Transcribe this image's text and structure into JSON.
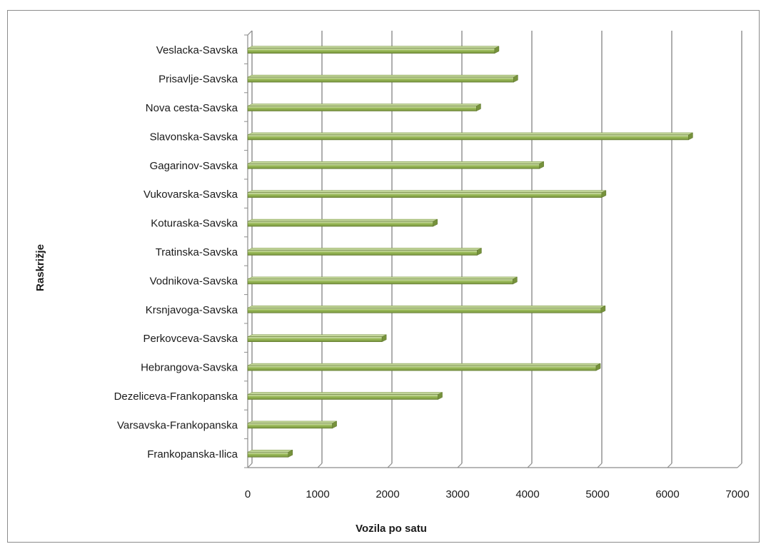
{
  "chart_data": {
    "type": "bar",
    "orientation": "horizontal",
    "title": "",
    "xlabel": "Vozila po satu",
    "ylabel": "Raskrižje",
    "xlim": [
      0,
      7000
    ],
    "xticks": [
      0,
      1000,
      2000,
      3000,
      4000,
      5000,
      6000,
      7000
    ],
    "grid": true,
    "legend": "none",
    "bar_color": "#9bbb59",
    "categories": [
      "Veslacka-Savska",
      "Prisavlje-Savska",
      "Nova cesta-Savska",
      "Slavonska-Savska",
      "Gagarinov-Savska",
      "Vukovarska-Savska",
      "Koturaska-Savska",
      "Tratinska-Savska",
      "Vodnikova-Savska",
      "Krsnjavoga-Savska",
      "Perkovceva-Savska",
      "Hebrangova-Savska",
      "Dezeliceva-Frankopanska",
      "Varsavska-Frankopanska",
      "Frankopanska-Ilica"
    ],
    "values": [
      3530,
      3800,
      3270,
      6300,
      4170,
      5060,
      2650,
      3280,
      3790,
      5050,
      1920,
      4980,
      2720,
      1210,
      580
    ]
  }
}
